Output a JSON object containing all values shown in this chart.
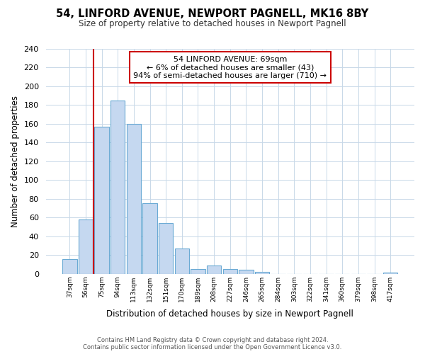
{
  "title": "54, LINFORD AVENUE, NEWPORT PAGNELL, MK16 8BY",
  "subtitle": "Size of property relative to detached houses in Newport Pagnell",
  "xlabel": "Distribution of detached houses by size in Newport Pagnell",
  "ylabel": "Number of detached properties",
  "bar_labels": [
    "37sqm",
    "56sqm",
    "75sqm",
    "94sqm",
    "113sqm",
    "132sqm",
    "151sqm",
    "170sqm",
    "189sqm",
    "208sqm",
    "227sqm",
    "246sqm",
    "265sqm",
    "284sqm",
    "303sqm",
    "322sqm",
    "341sqm",
    "360sqm",
    "379sqm",
    "398sqm",
    "417sqm"
  ],
  "bar_values": [
    16,
    58,
    157,
    185,
    160,
    75,
    54,
    27,
    5,
    9,
    5,
    4,
    2,
    0,
    0,
    0,
    0,
    0,
    0,
    0,
    1
  ],
  "bar_color": "#c5d8f0",
  "bar_edge_color": "#6aaad4",
  "ylim": [
    0,
    240
  ],
  "yticks": [
    0,
    20,
    40,
    60,
    80,
    100,
    120,
    140,
    160,
    180,
    200,
    220,
    240
  ],
  "vline_x_index": 1.5,
  "vline_color": "#cc0000",
  "annotation_title": "54 LINFORD AVENUE: 69sqm",
  "annotation_line1": "← 6% of detached houses are smaller (43)",
  "annotation_line2": "94% of semi-detached houses are larger (710) →",
  "annotation_box_color": "#ffffff",
  "annotation_box_edge": "#cc0000",
  "footer_line1": "Contains HM Land Registry data © Crown copyright and database right 2024.",
  "footer_line2": "Contains public sector information licensed under the Open Government Licence v3.0.",
  "background_color": "#ffffff",
  "grid_color": "#c8d8e8"
}
